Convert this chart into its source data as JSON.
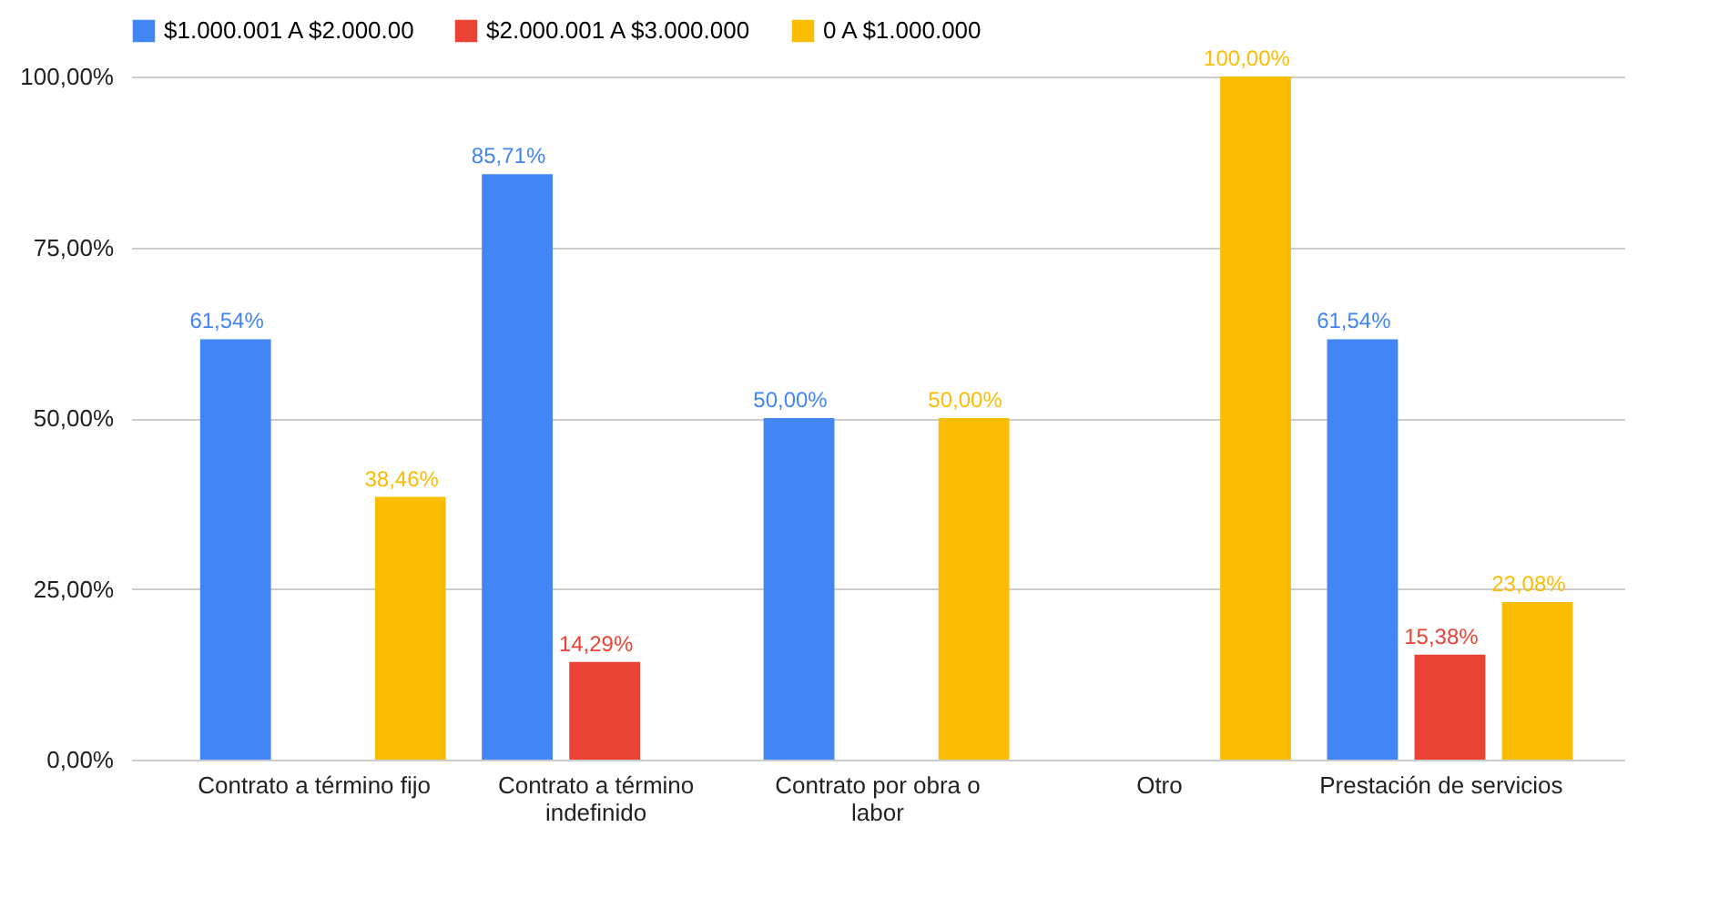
{
  "chart_data": {
    "type": "bar",
    "categories": [
      "Contrato a término fijo",
      "Contrato a término indefinido",
      "Contrato por obra o labor",
      "Otro",
      "Prestación de servicios"
    ],
    "series": [
      {
        "name": "$1.000.001 A $2.000.00",
        "color": "#4285f4",
        "values": [
          61.54,
          85.71,
          50,
          null,
          61.54
        ],
        "value_labels": [
          "61,54%",
          "85,71%",
          "50,00%",
          null,
          "61,54%"
        ]
      },
      {
        "name": "$2.000.001 A $3.000.000",
        "color": "#ea4335",
        "values": [
          null,
          14.29,
          null,
          null,
          15.38
        ],
        "value_labels": [
          null,
          "14,29%",
          null,
          null,
          "15,38%"
        ]
      },
      {
        "name": "0 A $1.000.000",
        "color": "#fbbc04",
        "values": [
          38.46,
          null,
          50,
          100,
          23.08
        ],
        "value_labels": [
          "38,46%",
          null,
          "50,00%",
          "100,00%",
          "23,08%"
        ]
      }
    ],
    "ylim": [
      0,
      100
    ],
    "yticks": [
      {
        "value": 0,
        "label": "0,00%"
      },
      {
        "value": 25,
        "label": "25,00%"
      },
      {
        "value": 50,
        "label": "50,00%"
      },
      {
        "value": 75,
        "label": "75,00%"
      },
      {
        "value": 100,
        "label": "100,00%"
      }
    ],
    "grid": "y",
    "legend": "top"
  }
}
